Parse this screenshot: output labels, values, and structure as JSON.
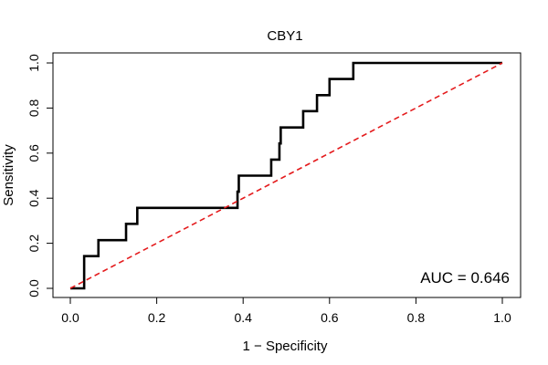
{
  "chart_data": {
    "type": "line",
    "title": "CBY1",
    "xlabel": "1 − Specificity",
    "ylabel": "Sensitivity",
    "xlim": [
      0,
      1
    ],
    "ylim": [
      0,
      1
    ],
    "x_ticks": [
      "0.0",
      "0.2",
      "0.4",
      "0.6",
      "0.8",
      "1.0"
    ],
    "y_ticks": [
      "0.0",
      "0.2",
      "0.4",
      "0.6",
      "0.8",
      "1.0"
    ],
    "annotation": "AUC = 0.646",
    "legend": "none",
    "grid": false,
    "series": [
      {
        "kind": "roc",
        "color": "#000000",
        "points": [
          [
            0.0,
            0.0
          ],
          [
            0.032,
            0.0
          ],
          [
            0.032,
            0.143
          ],
          [
            0.065,
            0.143
          ],
          [
            0.065,
            0.214
          ],
          [
            0.129,
            0.214
          ],
          [
            0.129,
            0.286
          ],
          [
            0.155,
            0.286
          ],
          [
            0.155,
            0.357
          ],
          [
            0.387,
            0.357
          ],
          [
            0.387,
            0.429
          ],
          [
            0.39,
            0.429
          ],
          [
            0.39,
            0.5
          ],
          [
            0.465,
            0.5
          ],
          [
            0.465,
            0.571
          ],
          [
            0.484,
            0.571
          ],
          [
            0.484,
            0.643
          ],
          [
            0.487,
            0.643
          ],
          [
            0.487,
            0.714
          ],
          [
            0.539,
            0.714
          ],
          [
            0.539,
            0.786
          ],
          [
            0.571,
            0.786
          ],
          [
            0.571,
            0.857
          ],
          [
            0.6,
            0.857
          ],
          [
            0.6,
            0.929
          ],
          [
            0.655,
            0.929
          ],
          [
            0.655,
            1.0
          ],
          [
            1.0,
            1.0
          ]
        ]
      },
      {
        "kind": "reference",
        "color": "#e41a1c",
        "dashed": true,
        "points": [
          [
            0,
            0
          ],
          [
            1,
            1
          ]
        ]
      }
    ]
  }
}
